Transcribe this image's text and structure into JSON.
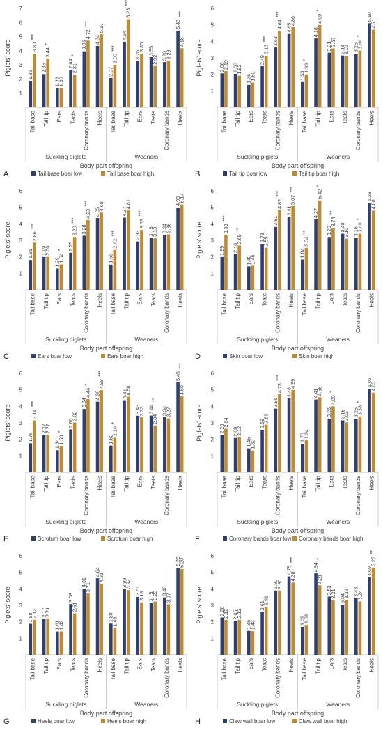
{
  "figure": {
    "ylabel": "Piglets' score",
    "xlabel": "Body part offspring",
    "group_labels": [
      "Suckling piglets",
      "Weaners"
    ],
    "colors": {
      "low": "#2e3f73",
      "high": "#c38a2c",
      "axis": "#bfbfbf",
      "text": "#404040"
    }
  },
  "chart_data": [
    {
      "panel": "A",
      "type": "bar",
      "categories": [
        "Tail base",
        "Tail tip",
        "Ears",
        "Teats",
        "Coronary bands",
        "Heels",
        "Tail base",
        "Tail tip",
        "Ears",
        "Teats",
        "Coronary bands",
        "Heels"
      ],
      "groups": [
        {
          "label": "Suckling piglets",
          "count": 6
        },
        {
          "label": "Weaners",
          "count": 6
        }
      ],
      "ylim": [
        0,
        7
      ],
      "yticks": [
        1,
        2,
        3,
        4,
        5,
        6,
        7
      ],
      "series": [
        {
          "name": "Tail base boar low",
          "values": [
            1.86,
            2.35,
            1.36,
            2.64,
            3.96,
            4.34,
            2.07,
            4.64,
            3.26,
            3.55,
            3.2,
            5.43
          ]
        },
        {
          "name": "Tail base boar high",
          "values": [
            3.8,
            3.44,
            1.36,
            2.31,
            4.72,
            5.17,
            3.0,
            6.23,
            3.8,
            2.92,
            3.28,
            4.18
          ]
        }
      ],
      "sig": [
        "***",
        "*",
        "",
        "*",
        "***",
        "",
        "***",
        "***",
        "",
        "",
        "",
        "***"
      ]
    },
    {
      "panel": "B",
      "type": "bar",
      "categories": [
        "Tail base",
        "Tail tip",
        "Ears",
        "Teats",
        "Coronary bands",
        "Heels",
        "Tail base",
        "Tail tip",
        "Ears",
        "Teats",
        "Coronary bands",
        "Heels"
      ],
      "groups": [
        {
          "label": "Suckling piglets",
          "count": 6
        },
        {
          "label": "Weaners",
          "count": 6
        }
      ],
      "ylim": [
        0,
        6
      ],
      "yticks": [
        1,
        2,
        3,
        4,
        5,
        6
      ],
      "series": [
        {
          "name": "Tail tip boar low",
          "values": [
            2.06,
            2.03,
            1.36,
            2.49,
            3.63,
            4.45,
            1.53,
            4.18,
            3.31,
            3.14,
            3.25,
            5.1
          ]
        },
        {
          "name": "Tail tip boar high",
          "values": [
            2.19,
            1.92,
            1.5,
            3.13,
            4.64,
            4.86,
            1.99,
            4.99,
            3.57,
            3.1,
            3.44,
            4.71
          ]
        }
      ],
      "sig": [
        "",
        "",
        "",
        "***",
        "***",
        "",
        "*",
        "*",
        "",
        "",
        "*",
        ""
      ]
    },
    {
      "panel": "C",
      "type": "bar",
      "categories": [
        "Tail base",
        "Tail tip",
        "Ears",
        "Teats",
        "Coronary bands",
        "Heels",
        "Tail base",
        "Tail tip",
        "Ears",
        "Teats",
        "Coronary bands",
        "Heels"
      ],
      "groups": [
        {
          "label": "Suckling piglets",
          "count": 6
        },
        {
          "label": "Weaners",
          "count": 6
        }
      ],
      "ylim": [
        0,
        6
      ],
      "yticks": [
        1,
        2,
        3,
        4,
        5,
        6
      ],
      "series": [
        {
          "name": "Ears boar low",
          "values": [
            1.81,
            1.99,
            1.29,
            2.25,
            3.28,
            4.35,
            1.53,
            4.37,
            2.93,
            3.15,
            3.34,
            4.99
          ]
        },
        {
          "name": "Ears boar high",
          "values": [
            2.86,
            2.0,
            1.54,
            3.2,
            4.23,
            4.68,
            2.42,
            4.81,
            3.63,
            3.13,
            3.36,
            5.17
          ]
        }
      ],
      "sig": [
        "***",
        "",
        "*",
        "***",
        "***",
        "",
        "***",
        "",
        "***",
        "",
        "",
        ""
      ]
    },
    {
      "panel": "D",
      "type": "bar",
      "categories": [
        "Tail base",
        "Tail tip",
        "Ears",
        "Teats",
        "Coronary bands",
        "Heels",
        "Tail base",
        "Tail tip",
        "Ears",
        "Teats",
        "Coronary bands",
        "Heels"
      ],
      "groups": [
        {
          "label": "Suckling piglets",
          "count": 6
        },
        {
          "label": "Weaners",
          "count": 6
        }
      ],
      "ylim": [
        0,
        6
      ],
      "yticks": [
        1,
        2,
        3,
        4,
        5,
        6
      ],
      "series": [
        {
          "name": "Skin boar low",
          "values": [
            1.99,
            2.16,
            1.42,
            2.78,
            3.81,
            4.41,
            1.84,
            4.27,
            3.2,
            3.4,
            3.16,
            5.28
          ]
        },
        {
          "name": "Skin boar high",
          "values": [
            3.33,
            2.69,
            1.46,
            2.55,
            4.82,
            5.07,
            2.54,
            5.42,
            3.74,
            3.1,
            3.4,
            4.8
          ]
        }
      ],
      "sig": [
        "***",
        "**",
        "",
        "",
        "***",
        "***",
        "**",
        "*",
        "**",
        "",
        "*",
        ""
      ]
    },
    {
      "panel": "E",
      "type": "bar",
      "categories": [
        "Tail base",
        "Tail tip",
        "Ears",
        "Teats",
        "Coronary bands",
        "Heels",
        "Tail base",
        "Tail tip",
        "Ears",
        "Teats",
        "Coronary bands",
        "Heels"
      ],
      "groups": [
        {
          "label": "Suckling piglets",
          "count": 6
        },
        {
          "label": "Weaners",
          "count": 6
        }
      ],
      "ylim": [
        0,
        6
      ],
      "yticks": [
        1,
        2,
        3,
        4,
        5,
        6
      ],
      "series": [
        {
          "name": "Scrotum boar low",
          "values": [
            1.76,
            2.27,
            1.34,
            2.6,
            3.84,
            4.28,
            1.62,
            4.37,
            3.43,
            3.44,
            3.34,
            5.45
          ]
        },
        {
          "name": "Scrotum boar high",
          "values": [
            3.14,
            2.27,
            1.58,
            3.02,
            4.44,
            4.98,
            2.1,
            4.58,
            3.33,
            2.84,
            3.27,
            4.6
          ]
        }
      ],
      "sig": [
        "***",
        "",
        "*",
        "",
        "*",
        "***",
        "*",
        "",
        "",
        "**",
        "",
        "***"
      ]
    },
    {
      "panel": "F",
      "type": "bar",
      "categories": [
        "Tail base",
        "Tail tip",
        "Ears",
        "Teats",
        "Coronary bands",
        "Heels",
        "Tail base",
        "Tail tip",
        "Ears",
        "Teats",
        "Coronary bands",
        "Heels"
      ],
      "groups": [
        {
          "label": "Suckling piglets",
          "count": 6
        },
        {
          "label": "Weaners",
          "count": 6
        }
      ],
      "ylim": [
        0,
        6
      ],
      "yticks": [
        1,
        2,
        3,
        4,
        5,
        6
      ],
      "series": [
        {
          "name": "Coronary bands boar low",
          "values": [
            2.26,
            2.08,
            1.45,
            2.58,
            3.86,
            4.48,
            1.73,
            4.41,
            3.26,
            3.15,
            3.25,
            5.06
          ]
        },
        {
          "name": "Coronary bands boar high",
          "values": [
            2.64,
            2.12,
            1.32,
            2.89,
            4.73,
            4.99,
            1.94,
            4.55,
            4.0,
            3.03,
            3.38,
            4.83
          ]
        }
      ],
      "sig": [
        "",
        "",
        "",
        "",
        "***",
        "",
        "",
        "",
        "*",
        "",
        "*",
        ""
      ]
    },
    {
      "panel": "G",
      "type": "bar",
      "categories": [
        "Tail base",
        "Tail tip",
        "Ears",
        "Teats",
        "Coronary bands",
        "Heels",
        "Tail base",
        "Tail tip",
        "Ears",
        "Teats",
        "Coronary bands",
        "Heels"
      ],
      "groups": [
        {
          "label": "Suckling piglets",
          "count": 6
        },
        {
          "label": "Weaners",
          "count": 6
        }
      ],
      "ylim": [
        0,
        6
      ],
      "yticks": [
        1,
        2,
        3,
        4,
        5,
        6
      ],
      "series": [
        {
          "name": "Heels boar low",
          "values": [
            1.88,
            2.17,
            1.41,
            3.08,
            4.01,
            4.64,
            1.89,
            3.99,
            3.51,
            3.15,
            3.48,
            5.28
          ]
        },
        {
          "name": "Heels boar high",
          "values": [
            2.12,
            2.21,
            1.42,
            2.51,
            3.71,
            4.31,
            1.63,
            3.92,
            3.18,
            3.23,
            3.07,
            5.2
          ]
        }
      ],
      "sig": [
        "",
        "",
        "",
        "",
        "",
        "",
        "",
        "",
        "",
        "",
        "",
        ""
      ]
    },
    {
      "panel": "H",
      "type": "bar",
      "categories": [
        "Tail base",
        "Tail tip",
        "Ears",
        "Teats",
        "Coronary bands",
        "Heels",
        "Tail base",
        "Tail tip",
        "Ears",
        "Teats",
        "Coronary bands",
        "Heels"
      ],
      "groups": [
        {
          "label": "Suckling piglets",
          "count": 6
        },
        {
          "label": "Weaners",
          "count": 6
        }
      ],
      "ylim": [
        0,
        6
      ],
      "yticks": [
        1,
        2,
        3,
        4,
        5,
        6
      ],
      "series": [
        {
          "name": "Claw wall boar low",
          "values": [
            2.26,
            2.05,
            1.45,
            2.61,
            3.9,
            4.75,
            1.69,
            4.94,
            3.53,
            3.04,
            3.43,
            4.69
          ]
        },
        {
          "name": "Claw wall boar high",
          "values": [
            2.12,
            2.12,
            1.43,
            2.91,
            3.9,
            4.38,
            1.81,
            4.21,
            3.31,
            3.32,
            3.24,
            5.28
          ]
        }
      ],
      "sig": [
        "",
        "",
        "",
        "",
        "",
        "***",
        "",
        "*",
        "",
        "",
        "",
        "**"
      ]
    }
  ]
}
